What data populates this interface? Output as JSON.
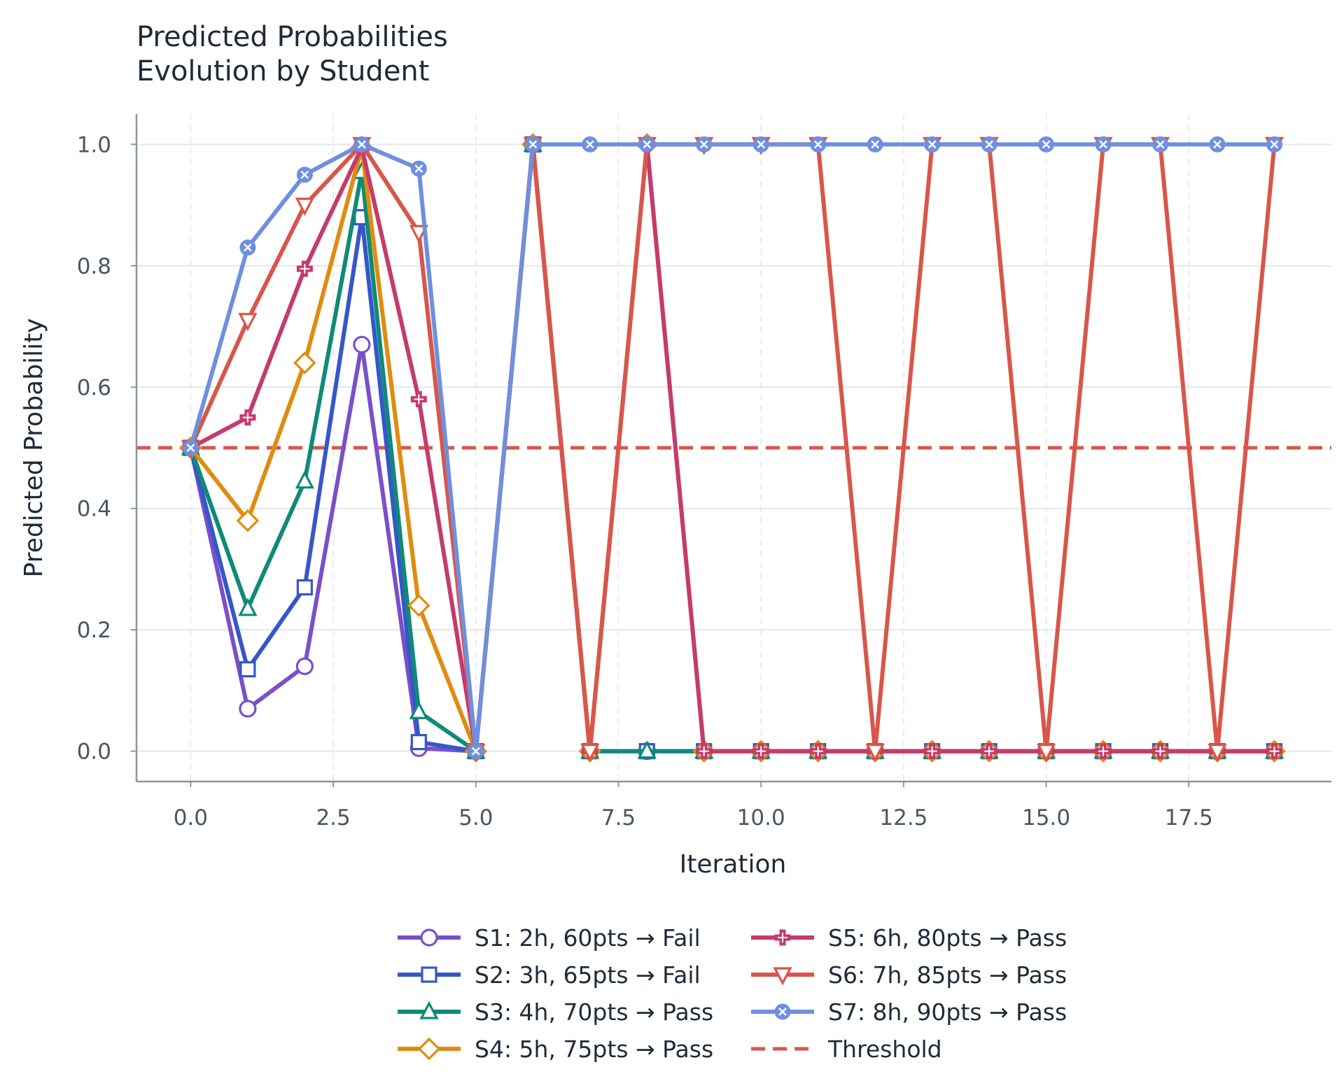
{
  "chart_data": {
    "type": "line",
    "title_lines": [
      "Predicted Probabilities",
      "Evolution by Student"
    ],
    "xlabel": "Iteration",
    "ylabel": "Predicted Probability",
    "xlim": [
      -0.95,
      20.0
    ],
    "ylim": [
      -0.05,
      1.05
    ],
    "xticks": [
      0.0,
      2.5,
      5.0,
      7.5,
      10.0,
      12.5,
      15.0,
      17.5
    ],
    "xtick_labels": [
      "0.0",
      "2.5",
      "5.0",
      "7.5",
      "10.0",
      "12.5",
      "15.0",
      "17.5"
    ],
    "yticks": [
      0.0,
      0.2,
      0.4,
      0.6,
      0.8,
      1.0
    ],
    "ytick_labels": [
      "0.0",
      "0.2",
      "0.4",
      "0.6",
      "0.8",
      "1.0"
    ],
    "grid": true,
    "legend_position": "bottom-center",
    "x": [
      0,
      1,
      2,
      3,
      4,
      5,
      6,
      7,
      8,
      9,
      10,
      11,
      12,
      13,
      14,
      15,
      16,
      17,
      18,
      19
    ],
    "threshold": {
      "name": "Threshold",
      "value": 0.5,
      "color": "#d9564a"
    },
    "series": [
      {
        "name": "S1: 2h, 60pts → Fail",
        "color": "#7b4fc9",
        "marker": "circle",
        "values": [
          0.5,
          0.07,
          0.14,
          0.67,
          0.005,
          0.0,
          1.0,
          0.0,
          0.0,
          0.0,
          0.0,
          0.0,
          0.0,
          0.0,
          0.0,
          0.0,
          0.0,
          0.0,
          0.0,
          0.0
        ]
      },
      {
        "name": "S2: 3h, 65pts → Fail",
        "color": "#3557c8",
        "marker": "square",
        "values": [
          0.5,
          0.135,
          0.27,
          0.88,
          0.015,
          0.0,
          1.0,
          0.0,
          0.0,
          0.0,
          0.0,
          0.0,
          0.0,
          0.0,
          0.0,
          0.0,
          0.0,
          0.0,
          0.0,
          0.0
        ]
      },
      {
        "name": "S3: 4h, 70pts → Pass",
        "color": "#0f8a78",
        "marker": "triangle-up",
        "values": [
          0.5,
          0.235,
          0.445,
          0.955,
          0.065,
          0.0,
          1.0,
          0.0,
          0.0,
          0.0,
          0.0,
          0.0,
          0.0,
          0.0,
          0.0,
          0.0,
          0.0,
          0.0,
          0.0,
          0.0
        ]
      },
      {
        "name": "S4: 5h, 75pts → Pass",
        "color": "#e08c10",
        "marker": "diamond",
        "values": [
          0.5,
          0.38,
          0.64,
          0.995,
          0.24,
          0.0,
          1.0,
          0.0,
          1.0,
          0.0,
          0.0,
          0.0,
          0.0,
          0.0,
          0.0,
          0.0,
          0.0,
          0.0,
          0.0,
          0.0
        ]
      },
      {
        "name": "S5: 6h, 80pts → Pass",
        "color": "#c43b6e",
        "marker": "plus",
        "values": [
          0.5,
          0.55,
          0.795,
          0.995,
          0.58,
          0.0,
          1.0,
          0.0,
          1.0,
          0.0,
          0.0,
          0.0,
          0.0,
          0.0,
          0.0,
          0.0,
          0.0,
          0.0,
          0.0,
          0.0
        ]
      },
      {
        "name": "S6: 7h, 85pts → Pass",
        "color": "#d9564a",
        "marker": "triangle-down",
        "values": [
          0.5,
          0.71,
          0.9,
          1.0,
          0.855,
          0.0,
          1.0,
          0.0,
          1.0,
          1.0,
          1.0,
          1.0,
          0.0,
          1.0,
          1.0,
          0.0,
          1.0,
          1.0,
          0.0,
          1.0
        ]
      },
      {
        "name": "S7: 8h, 90pts → Pass",
        "color": "#6f8fe0",
        "marker": "x",
        "values": [
          0.5,
          0.83,
          0.95,
          1.0,
          0.96,
          0.0,
          1.0,
          1.0,
          1.0,
          1.0,
          1.0,
          1.0,
          1.0,
          1.0,
          1.0,
          1.0,
          1.0,
          1.0,
          1.0,
          1.0
        ]
      }
    ]
  },
  "colors": {
    "axis": "#8a94a6",
    "grid": "#e3e7ec",
    "background": "#ffffff"
  }
}
